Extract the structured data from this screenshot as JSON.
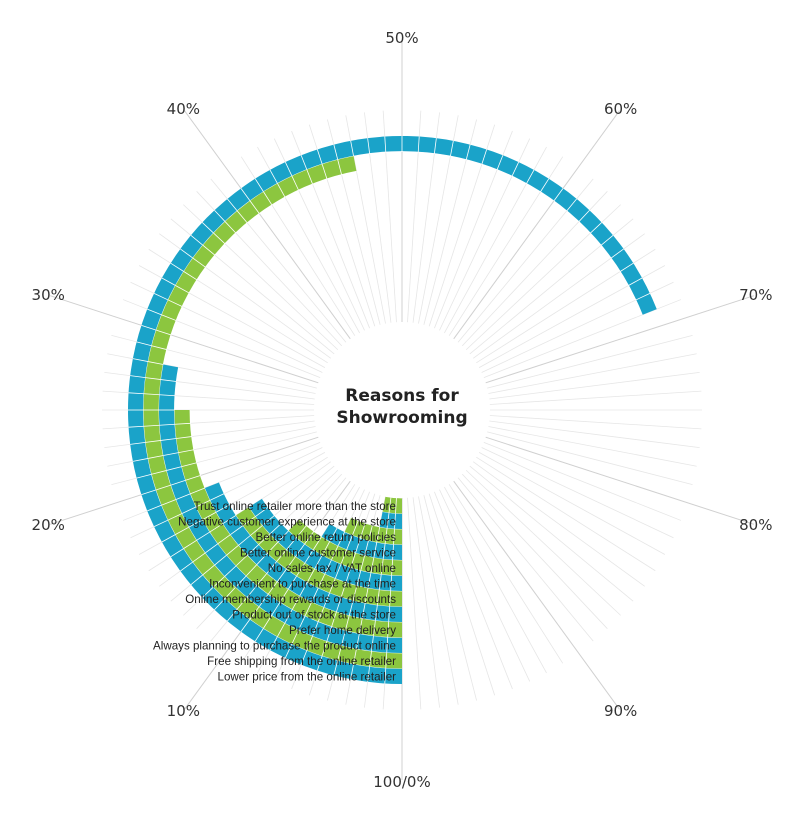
{
  "chart_data": {
    "type": "radial-bar",
    "title_lines": [
      "Reasons for",
      "Showrooming"
    ],
    "value_unit": "%",
    "direction": "counter-clockwise from bottom",
    "range": [
      0,
      100
    ],
    "colors": {
      "blue": "#1AA3C9",
      "green": "#8CC63F",
      "ring_lines": "#e6e6e6"
    },
    "tick_labels": [
      {
        "label": "100/0%",
        "value": 0
      },
      {
        "label": "10%",
        "value": 10
      },
      {
        "label": "20%",
        "value": 20
      },
      {
        "label": "30%",
        "value": 30
      },
      {
        "label": "40%",
        "value": 40
      },
      {
        "label": "50%",
        "value": 50
      },
      {
        "label": "60%",
        "value": 60
      },
      {
        "label": "70%",
        "value": 70
      },
      {
        "label": "80%",
        "value": 80
      },
      {
        "label": "90%",
        "value": 90
      }
    ],
    "categories": [
      "Lower price from the online retailer",
      "Free shipping from the online retailer",
      "Always planning to purchase the product online",
      "Prefer home delivery",
      "Product out of stock at the store",
      "Online membership rewards or discounts",
      "Inconvenient to purchase at the time",
      "No sales tax / VAT online",
      "Better online customer service",
      "Better online return policies",
      "Negative customer experience at the store",
      "Trust online retailer more than the store"
    ],
    "values": [
      69,
      47,
      28,
      25,
      19,
      16,
      16,
      12,
      9,
      7,
      3,
      3
    ],
    "bar_colors": [
      "blue",
      "green",
      "blue",
      "green",
      "blue",
      "green",
      "blue",
      "green",
      "blue",
      "green",
      "blue",
      "green"
    ]
  }
}
